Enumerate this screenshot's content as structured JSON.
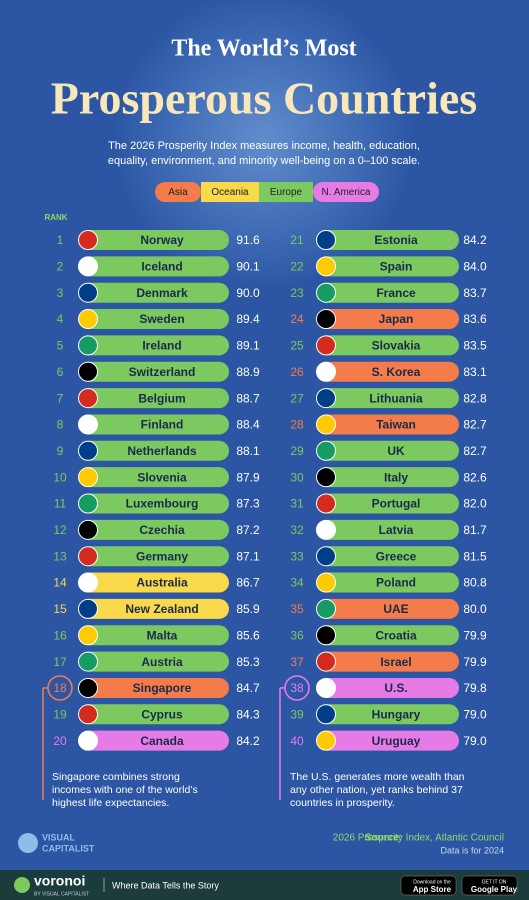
{
  "header": {
    "title_top": "The World’s Most",
    "title": "Prosperous Countries",
    "subtitle": [
      "The 2026 Prosperity Index measures income, health, education,",
      "equality, environment, and minority well-being on a 0–100 scale."
    ]
  },
  "legend": [
    {
      "label": "Asia",
      "color": "#f47c4a"
    },
    {
      "label": "Oceania",
      "color": "#f9d94a"
    },
    {
      "label": "Europe",
      "color": "#7cc95f"
    },
    {
      "label": "N. America",
      "color": "#e77be6"
    }
  ],
  "rank_label": "RANK",
  "rankings": [
    {
      "rank": "1",
      "country": "Norway",
      "score": "91.6",
      "region": "Europe"
    },
    {
      "rank": "2",
      "country": "Iceland",
      "score": "90.1",
      "region": "Europe"
    },
    {
      "rank": "3",
      "country": "Denmark",
      "score": "90.0",
      "region": "Europe"
    },
    {
      "rank": "4",
      "country": "Sweden",
      "score": "89.4",
      "region": "Europe"
    },
    {
      "rank": "5",
      "country": "Ireland",
      "score": "89.1",
      "region": "Europe"
    },
    {
      "rank": "6",
      "country": "Switzerland",
      "score": "88.9",
      "region": "Europe"
    },
    {
      "rank": "7",
      "country": "Belgium",
      "score": "88.7",
      "region": "Europe"
    },
    {
      "rank": "8",
      "country": "Finland",
      "score": "88.4",
      "region": "Europe"
    },
    {
      "rank": "9",
      "country": "Netherlands",
      "score": "88.1",
      "region": "Europe"
    },
    {
      "rank": "10",
      "country": "Slovenia",
      "score": "87.9",
      "region": "Europe"
    },
    {
      "rank": "11",
      "country": "Luxembourg",
      "score": "87.3",
      "region": "Europe"
    },
    {
      "rank": "12",
      "country": "Czechia",
      "score": "87.2",
      "region": "Europe"
    },
    {
      "rank": "13",
      "country": "Germany",
      "score": "87.1",
      "region": "Europe"
    },
    {
      "rank": "14",
      "country": "Australia",
      "score": "86.7",
      "region": "Oceania"
    },
    {
      "rank": "15",
      "country": "New Zealand",
      "score": "85.9",
      "region": "Oceania"
    },
    {
      "rank": "16",
      "country": "Malta",
      "score": "85.6",
      "region": "Europe"
    },
    {
      "rank": "17",
      "country": "Austria",
      "score": "85.3",
      "region": "Europe"
    },
    {
      "rank": "18",
      "country": "Singapore",
      "score": "84.7",
      "region": "Asia",
      "note": [
        "Singapore combines strong",
        "incomes with one of the world’s",
        "highest life expectancies."
      ]
    },
    {
      "rank": "19",
      "country": "Cyprus",
      "score": "84.3",
      "region": "Europe"
    },
    {
      "rank": "20",
      "country": "Canada",
      "score": "84.2",
      "region": "N. America"
    },
    {
      "rank": "21",
      "country": "Estonia",
      "score": "84.2",
      "region": "Europe"
    },
    {
      "rank": "22",
      "country": "Spain",
      "score": "84.0",
      "region": "Europe"
    },
    {
      "rank": "23",
      "country": "France",
      "score": "83.7",
      "region": "Europe"
    },
    {
      "rank": "24",
      "country": "Japan",
      "score": "83.6",
      "region": "Asia"
    },
    {
      "rank": "25",
      "country": "Slovakia",
      "score": "83.5",
      "region": "Europe"
    },
    {
      "rank": "26",
      "country": "S. Korea",
      "score": "83.1",
      "region": "Asia"
    },
    {
      "rank": "27",
      "country": "Lithuania",
      "score": "82.8",
      "region": "Europe"
    },
    {
      "rank": "28",
      "country": "Taiwan",
      "score": "82.7",
      "region": "Asia"
    },
    {
      "rank": "29",
      "country": "UK",
      "score": "82.7",
      "region": "Europe"
    },
    {
      "rank": "30",
      "country": "Italy",
      "score": "82.6",
      "region": "Europe"
    },
    {
      "rank": "31",
      "country": "Portugal",
      "score": "82.0",
      "region": "Europe"
    },
    {
      "rank": "32",
      "country": "Latvia",
      "score": "81.7",
      "region": "Europe"
    },
    {
      "rank": "33",
      "country": "Greece",
      "score": "81.5",
      "region": "Europe"
    },
    {
      "rank": "34",
      "country": "Poland",
      "score": "80.8",
      "region": "Europe"
    },
    {
      "rank": "35",
      "country": "UAE",
      "score": "80.0",
      "region": "Asia"
    },
    {
      "rank": "36",
      "country": "Croatia",
      "score": "79.9",
      "region": "Europe"
    },
    {
      "rank": "37",
      "country": "Israel",
      "score": "79.9",
      "region": "Asia"
    },
    {
      "rank": "38",
      "country": "U.S.",
      "score": "79.8",
      "region": "N. America",
      "note": [
        "The U.S. generates more wealth than",
        "any other nation, yet ranks behind 37",
        "countries in prosperity."
      ]
    },
    {
      "rank": "39",
      "country": "Hungary",
      "score": "79.0",
      "region": "Europe"
    },
    {
      "rank": "40",
      "country": "Uruguay",
      "score": "79.0",
      "region": "N. America"
    }
  ],
  "source": {
    "label": "Source:",
    "text": "2026 Prosperity Index, Atlantic Council",
    "note": "Data is for 2024"
  },
  "brand": {
    "line1": "VISUAL",
    "line2": "CAPITALIST"
  },
  "footer": {
    "logo": "voronoi",
    "logo_sub": "BY VISUAL CAPITALIST",
    "tagline": "Where Data Tells the Story",
    "app_store_small": "Download on the",
    "app_store": "App Store",
    "google_small": "GET IT ON",
    "google": "Google Play"
  }
}
